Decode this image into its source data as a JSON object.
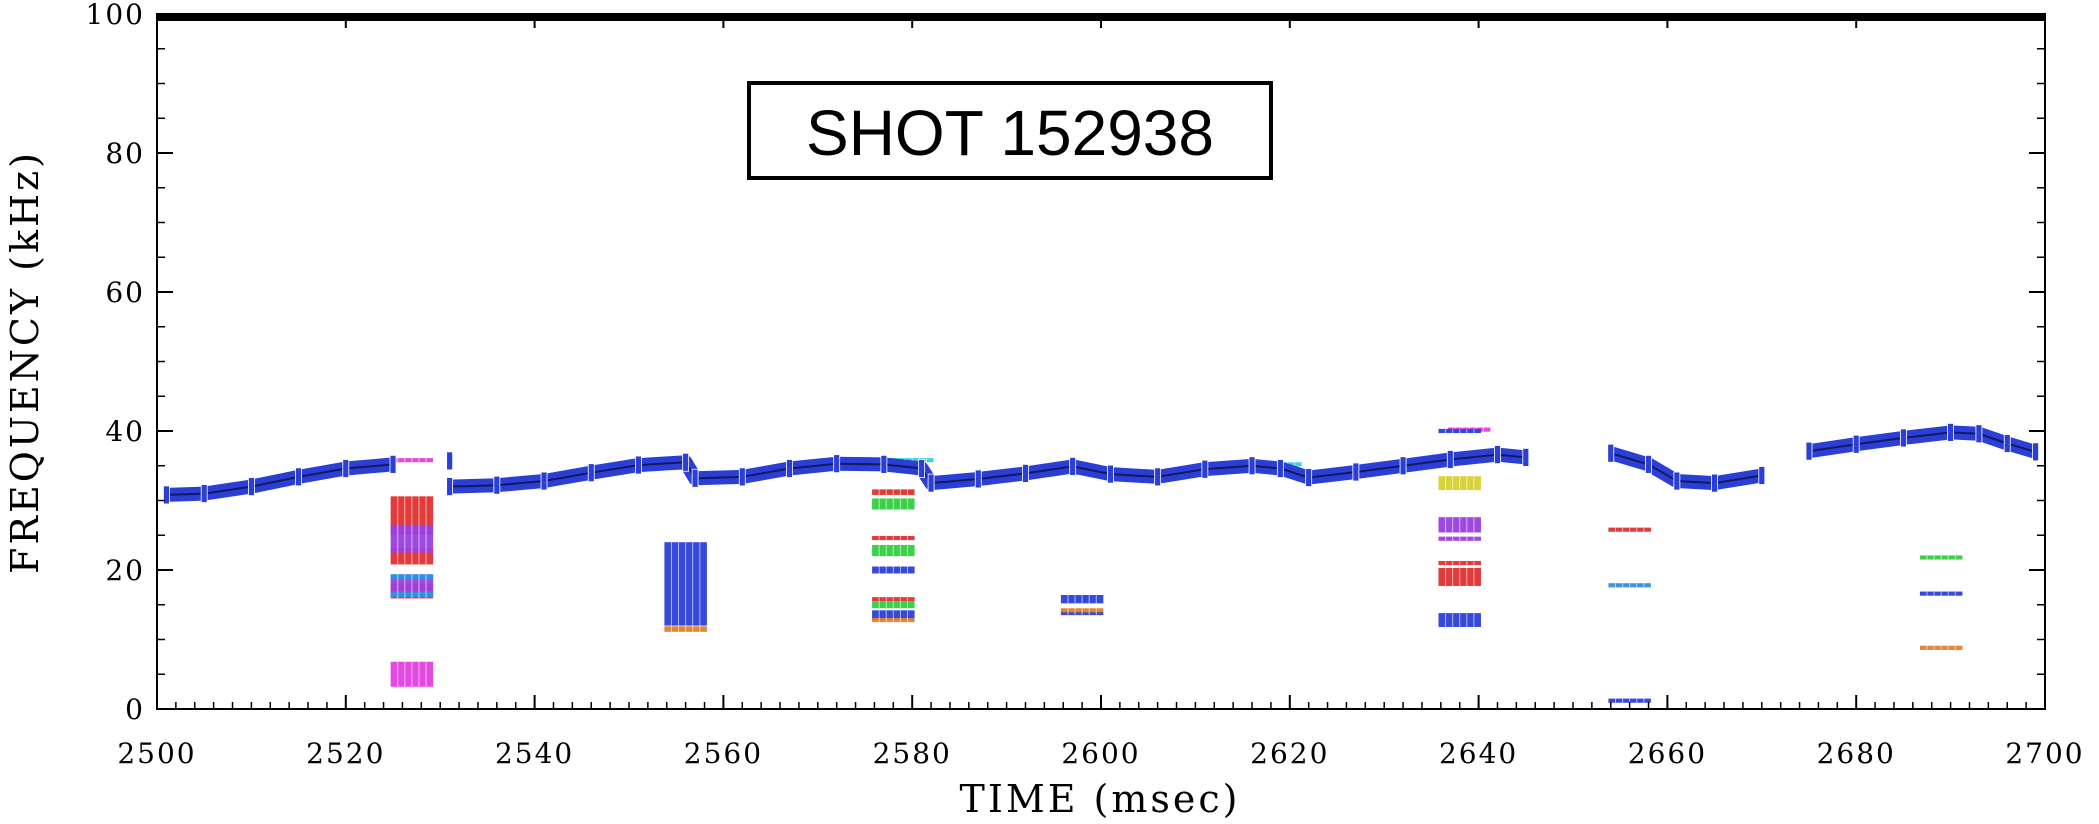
{
  "chart_data": {
    "type": "scatter",
    "title": "",
    "annotation": "SHOT 152938",
    "xlabel": "TIME (msec)",
    "ylabel": "FREQUENCY (kHz)",
    "xlim": [
      2500,
      2700
    ],
    "ylim": [
      0,
      100
    ],
    "x_ticks": [
      2500,
      2520,
      2540,
      2560,
      2580,
      2600,
      2620,
      2640,
      2660,
      2680,
      2700
    ],
    "y_ticks": [
      0,
      20,
      40,
      60,
      80,
      100
    ],
    "grid": false,
    "legend": "none",
    "colors": {
      "blue": "#2b3fd6",
      "red": "#e03030",
      "purple": "#9b3fe0",
      "magenta": "#e040e0",
      "green": "#30d040",
      "orange": "#e08030",
      "yellow": "#d8d030",
      "cyan": "#30d0e0",
      "sky": "#3090e0"
    },
    "main_mode": {
      "name": "",
      "color": "#2b3fd6",
      "points": [
        [
          2501,
          30.8
        ],
        [
          2505,
          31.0
        ],
        [
          2510,
          32.0
        ],
        [
          2515,
          33.4
        ],
        [
          2520,
          34.6
        ],
        [
          2525,
          35.2
        ],
        [
          2531,
          35.7
        ],
        [
          2531,
          32.0
        ],
        [
          2536,
          32.2
        ],
        [
          2541,
          32.8
        ],
        [
          2546,
          34.0
        ],
        [
          2551,
          35.1
        ],
        [
          2556,
          35.5
        ],
        [
          2557,
          33.2
        ],
        [
          2562,
          33.4
        ],
        [
          2567,
          34.6
        ],
        [
          2572,
          35.3
        ],
        [
          2577,
          35.2
        ],
        [
          2581,
          34.6
        ],
        [
          2582,
          32.5
        ],
        [
          2587,
          33.1
        ],
        [
          2592,
          33.9
        ],
        [
          2597,
          34.9
        ],
        [
          2601,
          33.8
        ],
        [
          2606,
          33.4
        ],
        [
          2611,
          34.5
        ],
        [
          2616,
          35.0
        ],
        [
          2619,
          34.6
        ],
        [
          2622,
          33.3
        ],
        [
          2627,
          34.1
        ],
        [
          2632,
          35.0
        ],
        [
          2637,
          35.9
        ],
        [
          2642,
          36.6
        ],
        [
          2645,
          36.2
        ],
        [
          2654,
          36.8
        ],
        [
          2658,
          35.2
        ],
        [
          2661,
          32.8
        ],
        [
          2665,
          32.5
        ],
        [
          2670,
          33.6
        ],
        [
          2675,
          37.1
        ],
        [
          2680,
          38.1
        ],
        [
          2685,
          39.0
        ],
        [
          2690,
          39.8
        ],
        [
          2693,
          39.6
        ],
        [
          2696,
          38.2
        ],
        [
          2699,
          37.0
        ]
      ]
    },
    "series": [
      {
        "color": "#e03030",
        "points": [
          [
            2527,
            29.2,
            28
          ],
          [
            2527,
            26.5,
            28
          ],
          [
            2527,
            22.0,
            24
          ],
          [
            2527,
            17.0,
            22
          ]
        ]
      },
      {
        "color": "#9b3fe0",
        "points": [
          [
            2527,
            24.5,
            40
          ],
          [
            2527,
            17.8,
            30
          ]
        ]
      },
      {
        "color": "#3090e0",
        "points": [
          [
            2527,
            19.0,
            8
          ],
          [
            2527,
            16.5,
            8
          ]
        ]
      },
      {
        "color": "#e040e0",
        "points": [
          [
            2527,
            5.0,
            36
          ],
          [
            2527,
            35.8,
            6
          ]
        ]
      },
      {
        "color": "#2b3fd6",
        "points": [
          [
            2556,
            18.0,
            120
          ]
        ]
      },
      {
        "color": "#e08030",
        "points": [
          [
            2556,
            11.5,
            8
          ]
        ]
      },
      {
        "color": "#e03030",
        "points": [
          [
            2578,
            31.2,
            8
          ],
          [
            2578,
            24.6,
            6
          ],
          [
            2578,
            15.8,
            6
          ]
        ]
      },
      {
        "color": "#30d040",
        "points": [
          [
            2578,
            29.5,
            16
          ],
          [
            2578,
            22.8,
            16
          ],
          [
            2578,
            15.0,
            10
          ]
        ]
      },
      {
        "color": "#2b3fd6",
        "points": [
          [
            2578,
            20.0,
            10
          ],
          [
            2578,
            13.5,
            14
          ],
          [
            2598,
            15.8,
            12
          ],
          [
            2598,
            13.8,
            4
          ]
        ]
      },
      {
        "color": "#e08030",
        "points": [
          [
            2578,
            12.8,
            6
          ],
          [
            2598,
            14.2,
            4
          ]
        ]
      },
      {
        "color": "#30d0e0",
        "points": [
          [
            2580,
            35.8,
            4
          ],
          [
            2619,
            35.2,
            4
          ]
        ]
      },
      {
        "color": "#e040e0",
        "points": [
          [
            2599,
            34.0,
            6
          ],
          [
            2639,
            40.2,
            4
          ]
        ]
      },
      {
        "color": "#d8d030",
        "points": [
          [
            2638,
            32.5,
            20
          ]
        ]
      },
      {
        "color": "#9b3fe0",
        "points": [
          [
            2638,
            26.5,
            22
          ],
          [
            2638,
            24.5,
            4
          ]
        ]
      },
      {
        "color": "#e03030",
        "points": [
          [
            2638,
            19.0,
            26
          ],
          [
            2638,
            21.0,
            6
          ],
          [
            2656,
            25.8,
            6
          ]
        ]
      },
      {
        "color": "#2b3fd6",
        "points": [
          [
            2638,
            12.8,
            20
          ],
          [
            2638,
            40.0,
            6
          ],
          [
            2656,
            1.2,
            4
          ],
          [
            2689,
            16.6,
            6
          ]
        ]
      },
      {
        "color": "#3090e0",
        "points": [
          [
            2656,
            17.8,
            6
          ]
        ]
      },
      {
        "color": "#30d040",
        "points": [
          [
            2689,
            21.8,
            6
          ]
        ]
      },
      {
        "color": "#e08030",
        "points": [
          [
            2689,
            8.8,
            4
          ]
        ]
      }
    ]
  }
}
